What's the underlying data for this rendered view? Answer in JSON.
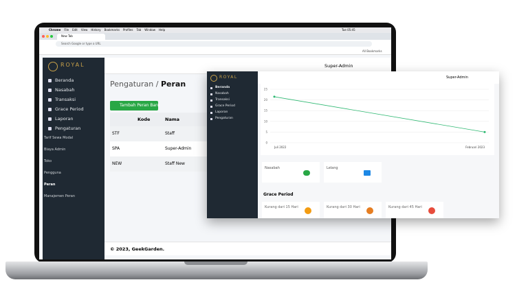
{
  "browser": {
    "menu": [
      "Chrome",
      "File",
      "Edit",
      "View",
      "History",
      "Bookmarks",
      "Profiles",
      "Tab",
      "Window",
      "Help"
    ],
    "clock": "Tue 05:45",
    "tab": "New Tab",
    "address": "Search Google or type a URL",
    "bookmarks": "All Bookmarks"
  },
  "app": {
    "logo": "ROYAL",
    "user": "Super-Admin",
    "sidebar": {
      "items": [
        "Beranda",
        "Nasabah",
        "Transaksi",
        "Grace Period",
        "Laporan",
        "Pengaturan"
      ],
      "submenu": [
        "Tarif Sewa Modal",
        "Biaya Admin",
        "Toko",
        "Pengguna",
        "Peran",
        "Manajemen Peran"
      ]
    },
    "breadcrumb": {
      "parent": "Pengaturan",
      "separator": "/",
      "current": "Peran"
    },
    "button": "Tambah Peran Baru",
    "table": {
      "headers": [
        "Kode",
        "Nama"
      ],
      "rows": [
        [
          "STF",
          "Staff"
        ],
        [
          "SPA",
          "Super-Admin"
        ],
        [
          "NEW",
          "Staff New"
        ]
      ]
    },
    "footer": "© 2023, GeekGarden."
  },
  "overlay": {
    "logo": "ROYAL",
    "user": "Super-Admin",
    "sidebar": [
      "Beranda",
      "Nasabah",
      "Transaksi",
      "Grace Period",
      "Laporan",
      "Pengaturan"
    ],
    "chart": {
      "type": "line",
      "categories": [
        "Juli 2022",
        "Februari 2023"
      ],
      "values": [
        21.5,
        5
      ],
      "color": "#2eb872",
      "ylim": [
        0,
        25
      ],
      "yticks": [
        0,
        5,
        10,
        15,
        20,
        25
      ]
    },
    "cards": [
      "Nasabah",
      "Lelang"
    ],
    "section": "Grace Period",
    "grace": [
      "Kurang dari 15 Hari",
      "Kurang dari 30 Hari",
      "Kurang dari 45 Hari"
    ]
  }
}
